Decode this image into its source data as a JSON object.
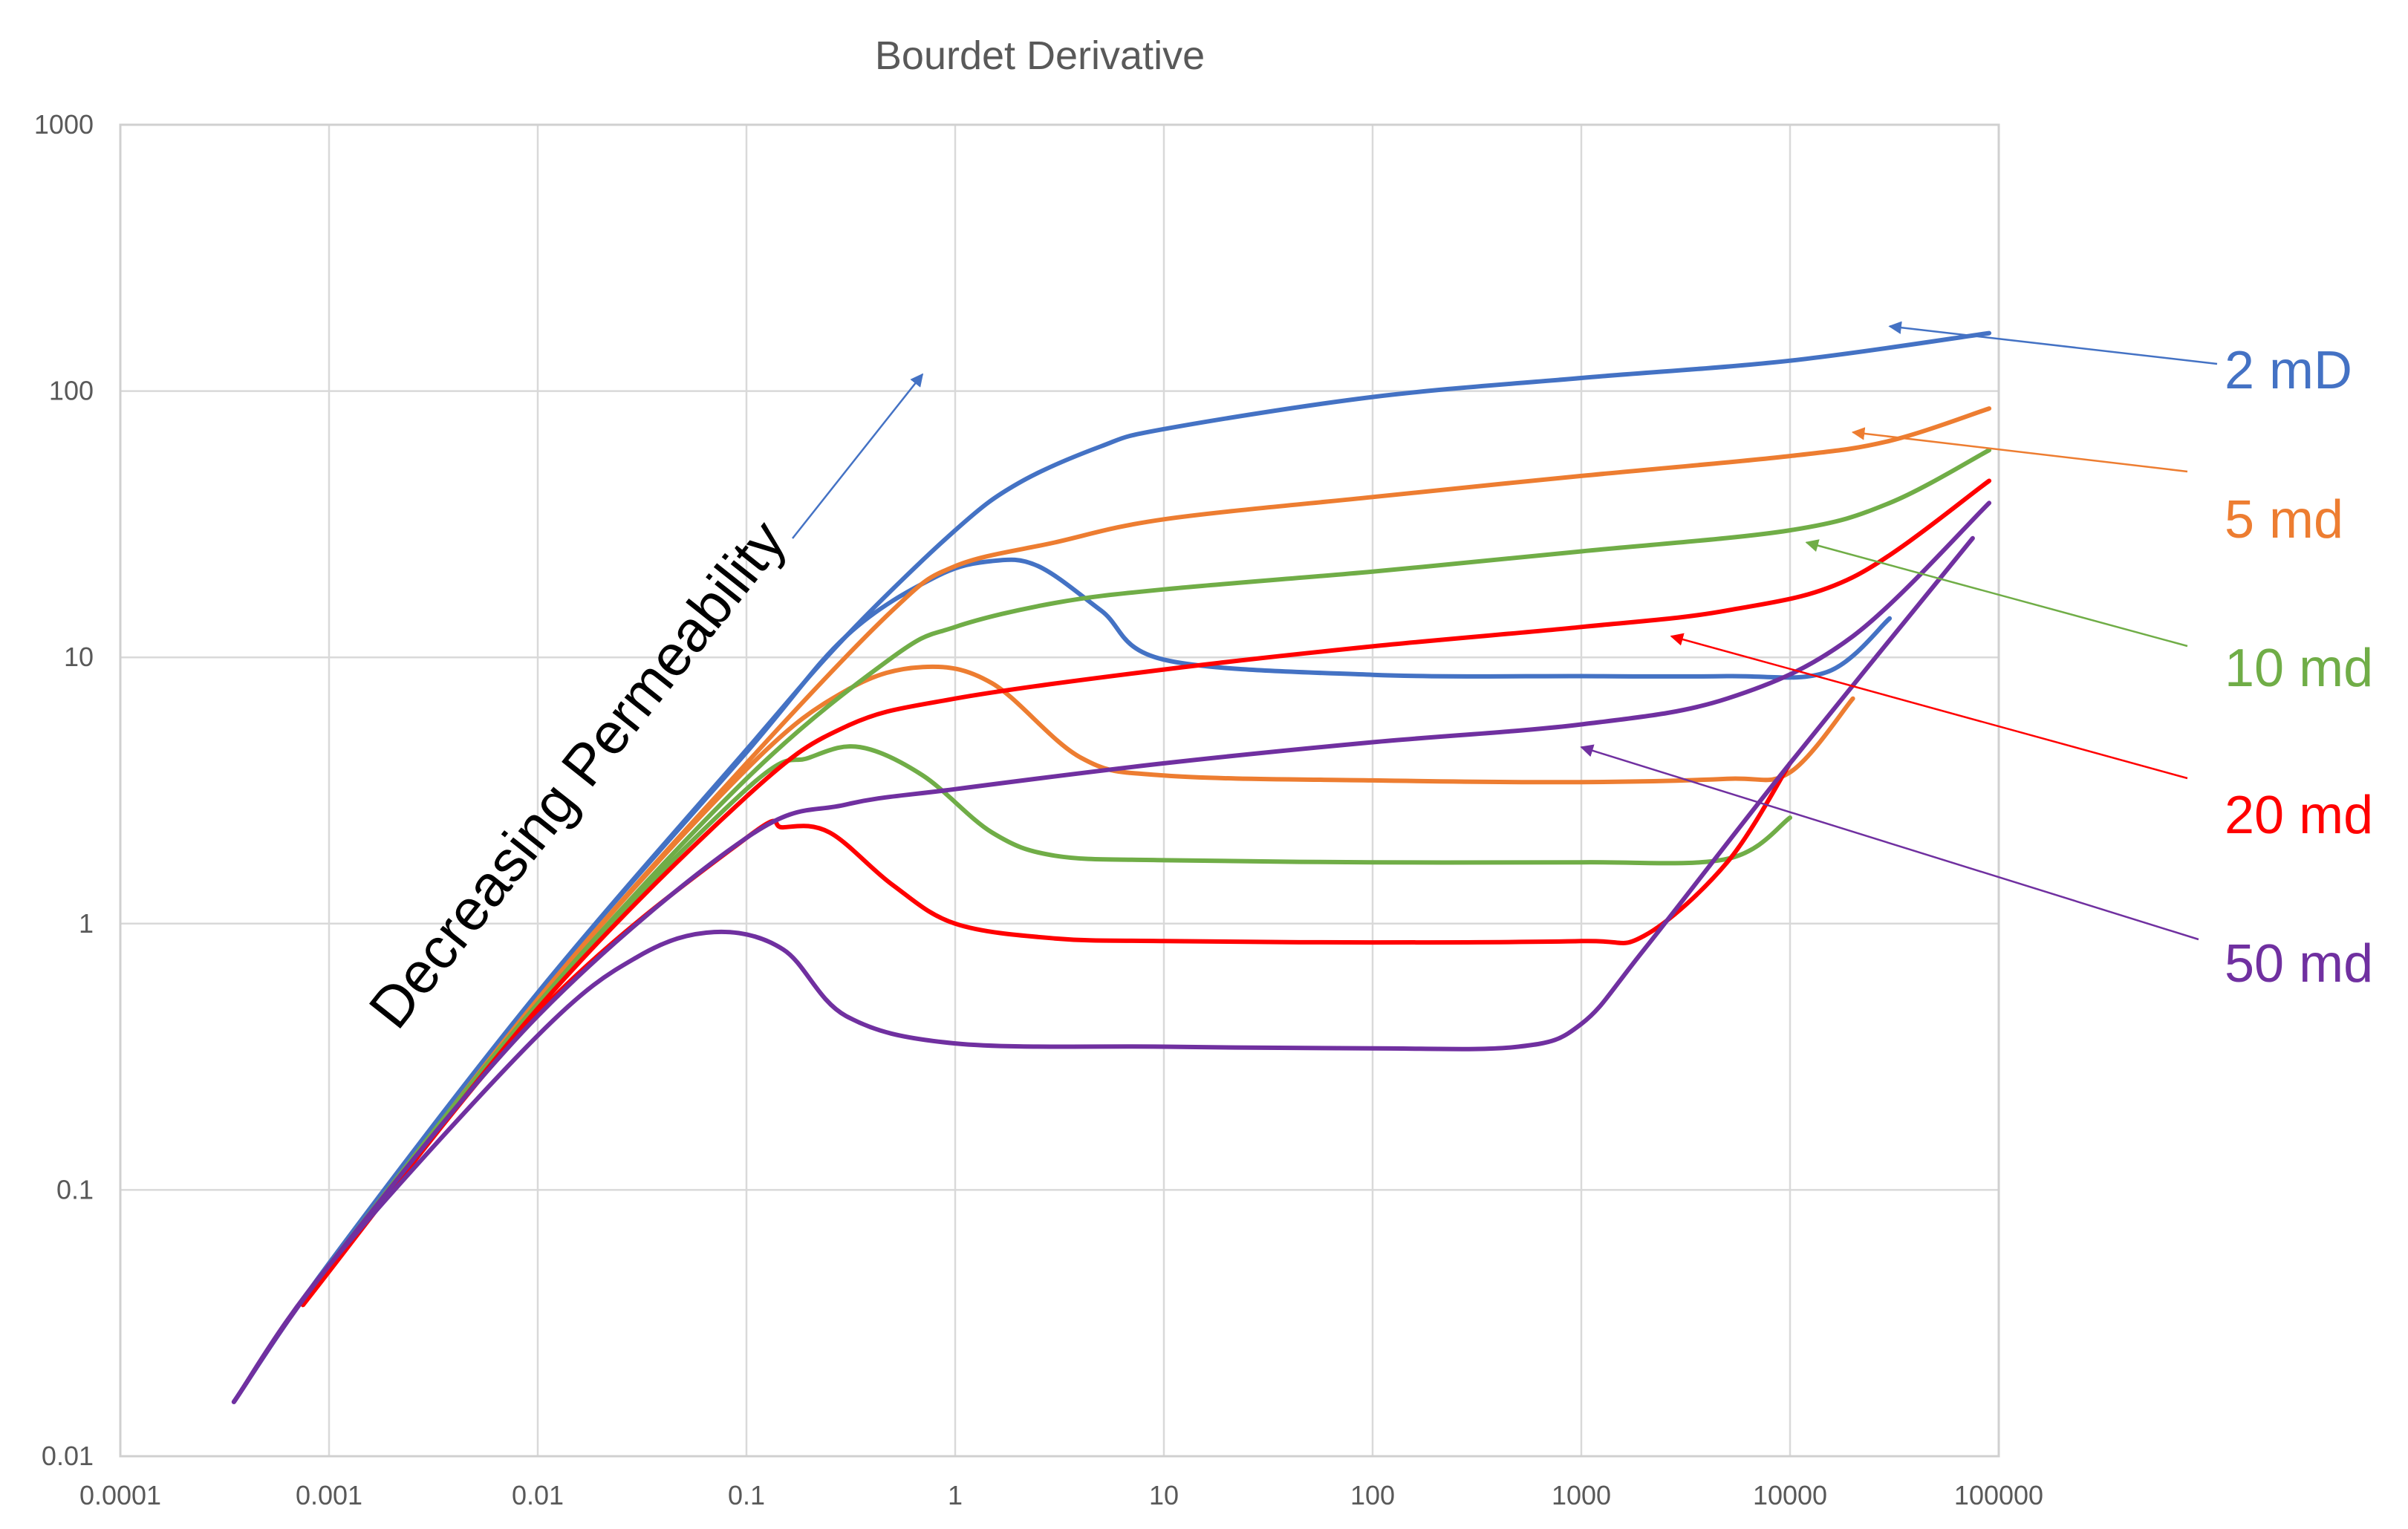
{
  "chart_data": {
    "type": "line",
    "title": "Bourdet Derivative",
    "x_scale": "log",
    "y_scale": "log",
    "xlim": [
      0.0001,
      100000
    ],
    "ylim": [
      0.01,
      1000
    ],
    "grid": true,
    "x_ticks": [
      "0.0001",
      "0.001",
      "0.01",
      "0.1",
      "1",
      "10",
      "100",
      "1000",
      "10000",
      "100000"
    ],
    "y_ticks": [
      "0.01",
      "0.1",
      "1",
      "10",
      "100",
      "1000"
    ],
    "annotation": "Decreasing Permeability",
    "series": [
      {
        "name": "2 mD",
        "color": "#4472C4",
        "pressure": [
          [
            0.00035,
            0.016
          ],
          [
            0.001,
            0.053
          ],
          [
            0.01,
            0.55
          ],
          [
            0.1,
            4.5
          ],
          [
            0.3,
            12
          ],
          [
            1,
            30
          ],
          [
            2,
            45
          ],
          [
            5,
            62
          ],
          [
            10,
            72
          ],
          [
            100,
            95
          ],
          [
            1000,
            112
          ],
          [
            10000,
            130
          ],
          [
            90000,
            165
          ]
        ],
        "derivative": [
          [
            0.00035,
            0.016
          ],
          [
            0.001,
            0.053
          ],
          [
            0.01,
            0.55
          ],
          [
            0.1,
            4.4
          ],
          [
            0.3,
            12
          ],
          [
            0.8,
            20
          ],
          [
            1.5,
            23
          ],
          [
            2.5,
            22
          ],
          [
            5,
            15
          ],
          [
            10,
            9.8
          ],
          [
            100,
            8.6
          ],
          [
            1000,
            8.5
          ],
          [
            5000,
            8.5
          ],
          [
            15000,
            8.8
          ],
          [
            30000,
            14
          ]
        ]
      },
      {
        "name": "5 md",
        "color": "#ED7D31",
        "pressure": [
          [
            0.00075,
            0.037
          ],
          [
            0.01,
            0.52
          ],
          [
            0.1,
            4.0
          ],
          [
            0.5,
            15
          ],
          [
            1,
            22
          ],
          [
            3,
            27
          ],
          [
            10,
            33
          ],
          [
            100,
            40
          ],
          [
            1000,
            48
          ],
          [
            10000,
            57
          ],
          [
            30000,
            65
          ],
          [
            90000,
            86
          ]
        ],
        "derivative": [
          [
            0.00075,
            0.037
          ],
          [
            0.01,
            0.52
          ],
          [
            0.1,
            3.8
          ],
          [
            0.3,
            7.5
          ],
          [
            0.7,
            9.2
          ],
          [
            1.5,
            8
          ],
          [
            4,
            4.2
          ],
          [
            10,
            3.6
          ],
          [
            100,
            3.45
          ],
          [
            1000,
            3.4
          ],
          [
            5000,
            3.5
          ],
          [
            10000,
            3.7
          ],
          [
            20000,
            7
          ]
        ]
      },
      {
        "name": "10 md",
        "color": "#70AD47",
        "pressure": [
          [
            0.001,
            0.052
          ],
          [
            0.01,
            0.5
          ],
          [
            0.1,
            3.5
          ],
          [
            0.5,
            10
          ],
          [
            1,
            13
          ],
          [
            3,
            16
          ],
          [
            10,
            18
          ],
          [
            100,
            21
          ],
          [
            1000,
            25
          ],
          [
            10000,
            30
          ],
          [
            30000,
            38
          ],
          [
            90000,
            60
          ]
        ],
        "derivative": [
          [
            0.001,
            0.052
          ],
          [
            0.01,
            0.5
          ],
          [
            0.1,
            3.2
          ],
          [
            0.2,
            4.2
          ],
          [
            0.35,
            4.6
          ],
          [
            0.7,
            3.6
          ],
          [
            1.5,
            2.2
          ],
          [
            3,
            1.8
          ],
          [
            10,
            1.73
          ],
          [
            100,
            1.7
          ],
          [
            1000,
            1.7
          ],
          [
            5000,
            1.75
          ],
          [
            10000,
            2.5
          ]
        ]
      },
      {
        "name": "20 md",
        "color": "#FF0000",
        "pressure": [
          [
            0.00075,
            0.037
          ],
          [
            0.01,
            0.48
          ],
          [
            0.1,
            3
          ],
          [
            0.3,
            5.5
          ],
          [
            1,
            7
          ],
          [
            10,
            9
          ],
          [
            100,
            11
          ],
          [
            1000,
            13
          ],
          [
            5000,
            15
          ],
          [
            20000,
            20
          ],
          [
            90000,
            46
          ]
        ],
        "derivative": [
          [
            0.00075,
            0.037
          ],
          [
            0.01,
            0.46
          ],
          [
            0.1,
            2.1
          ],
          [
            0.15,
            2.3
          ],
          [
            0.25,
            2.2
          ],
          [
            0.5,
            1.4
          ],
          [
            1,
            1
          ],
          [
            3,
            0.88
          ],
          [
            10,
            0.86
          ],
          [
            100,
            0.85
          ],
          [
            1000,
            0.86
          ],
          [
            2000,
            0.9
          ],
          [
            5000,
            1.7
          ],
          [
            10000,
            4
          ]
        ]
      },
      {
        "name": "50 md",
        "color": "#7030A0",
        "pressure": [
          [
            0.00035,
            0.016
          ],
          [
            0.001,
            0.052
          ],
          [
            0.01,
            0.45
          ],
          [
            0.1,
            2.1
          ],
          [
            0.3,
            2.8
          ],
          [
            1,
            3.2
          ],
          [
            10,
            4
          ],
          [
            100,
            4.8
          ],
          [
            1000,
            5.6
          ],
          [
            5000,
            7
          ],
          [
            20000,
            12
          ],
          [
            90000,
            38
          ]
        ],
        "derivative": [
          [
            0.00035,
            0.016
          ],
          [
            0.001,
            0.052
          ],
          [
            0.01,
            0.38
          ],
          [
            0.03,
            0.75
          ],
          [
            0.07,
            0.93
          ],
          [
            0.15,
            0.8
          ],
          [
            0.3,
            0.45
          ],
          [
            1,
            0.355
          ],
          [
            10,
            0.345
          ],
          [
            100,
            0.34
          ],
          [
            500,
            0.345
          ],
          [
            1000,
            0.42
          ],
          [
            2000,
            0.8
          ],
          [
            10000,
            4
          ],
          [
            75000,
            28
          ]
        ]
      }
    ],
    "labels": [
      {
        "text": "2 mD",
        "color": "#4472C4",
        "arrow_to": [
          30000,
          175
        ]
      },
      {
        "text": "5 md",
        "color": "#ED7D31",
        "arrow_to": [
          20000,
          70
        ]
      },
      {
        "text": "10 md",
        "color": "#70AD47",
        "arrow_to": [
          12000,
          27
        ]
      },
      {
        "text": "20 md",
        "color": "#FF0000",
        "arrow_to": [
          2700,
          12
        ]
      },
      {
        "text": "50 md",
        "color": "#7030A0",
        "arrow_to": [
          1000,
          4.6
        ]
      }
    ]
  }
}
